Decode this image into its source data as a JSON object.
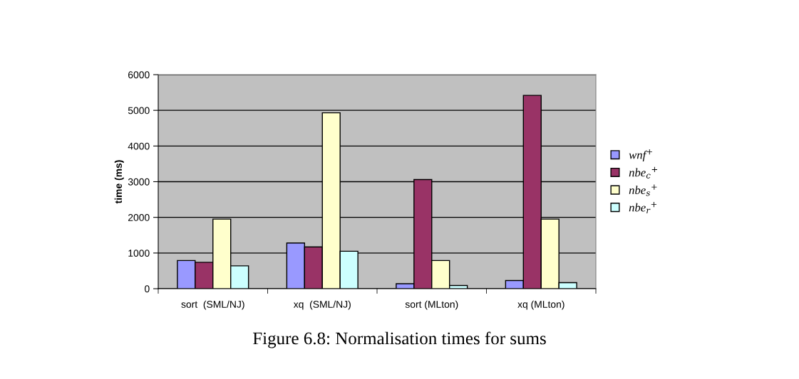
{
  "chart_data": {
    "type": "bar",
    "title": "Figure 6.8: Normalisation times for sums",
    "ylabel": "time (ms)",
    "categories": [
      "sort  (SML/NJ)",
      "xq  (SML/NJ)",
      "sort (MLton)",
      "xq (MLton)"
    ],
    "series": [
      {
        "name": "wnf$^{+}$",
        "color": "#9999ff",
        "values": [
          790,
          1280,
          140,
          230
        ]
      },
      {
        "name": "nbe$_{c}$$^{+}$",
        "color": "#993366",
        "values": [
          740,
          1170,
          3060,
          5420
        ]
      },
      {
        "name": "nbe$_{s}$$^{+}$",
        "color": "#ffffcc",
        "values": [
          1950,
          4930,
          790,
          1950
        ]
      },
      {
        "name": "nbe$_{r}$$^{+}$",
        "color": "#ccffff",
        "values": [
          640,
          1050,
          90,
          170
        ]
      }
    ],
    "ylim": [
      0,
      6000
    ],
    "yticks": [
      0,
      1000,
      2000,
      3000,
      4000,
      5000,
      6000
    ],
    "grid": "y",
    "legend": "right"
  }
}
